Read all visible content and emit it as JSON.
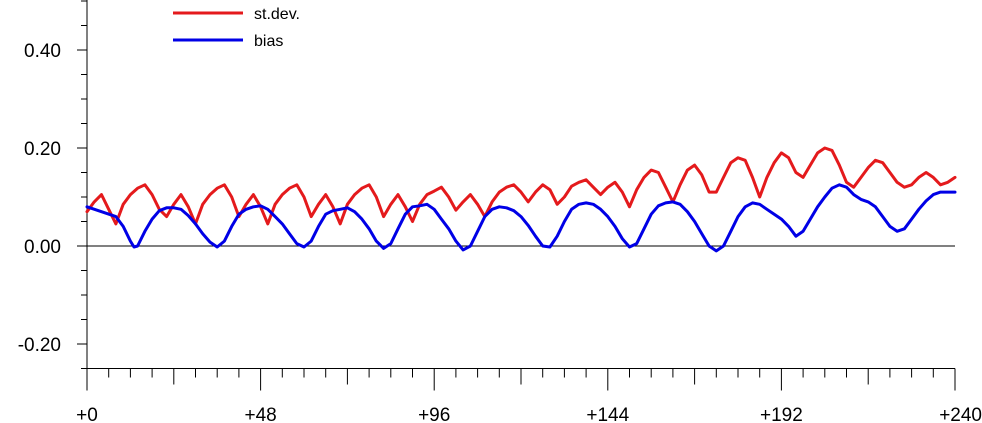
{
  "chart_data": {
    "type": "line",
    "title": "",
    "xlabel": "",
    "ylabel": "",
    "xlim": [
      0,
      240
    ],
    "ylim": [
      -0.25,
      0.5
    ],
    "x_ticks": [
      {
        "value": 0,
        "label": "+0"
      },
      {
        "value": 48,
        "label": "+48"
      },
      {
        "value": 96,
        "label": "+96"
      },
      {
        "value": 144,
        "label": "+144"
      },
      {
        "value": 192,
        "label": "+192"
      },
      {
        "value": 240,
        "label": "+240"
      }
    ],
    "y_ticks": [
      {
        "value": 0.4,
        "label": "0.40"
      },
      {
        "value": 0.2,
        "label": "0.20"
      },
      {
        "value": 0.0,
        "label": "0.00"
      },
      {
        "value": -0.2,
        "label": "-0.20"
      }
    ],
    "zero_line": true,
    "grid": false,
    "legend_position": "top-left",
    "series": [
      {
        "name": "st.dev.",
        "color": "#e41a1c",
        "points": [
          [
            0,
            0.07
          ],
          [
            2,
            0.09
          ],
          [
            4,
            0.105
          ],
          [
            6,
            0.075
          ],
          [
            8,
            0.045
          ],
          [
            10,
            0.085
          ],
          [
            12,
            0.105
          ],
          [
            14,
            0.118
          ],
          [
            16,
            0.125
          ],
          [
            18,
            0.105
          ],
          [
            20,
            0.075
          ],
          [
            22,
            0.06
          ],
          [
            24,
            0.085
          ],
          [
            26,
            0.105
          ],
          [
            28,
            0.08
          ],
          [
            30,
            0.045
          ],
          [
            32,
            0.085
          ],
          [
            34,
            0.105
          ],
          [
            36,
            0.118
          ],
          [
            38,
            0.125
          ],
          [
            40,
            0.1
          ],
          [
            42,
            0.06
          ],
          [
            44,
            0.085
          ],
          [
            46,
            0.105
          ],
          [
            48,
            0.08
          ],
          [
            50,
            0.045
          ],
          [
            52,
            0.085
          ],
          [
            54,
            0.105
          ],
          [
            56,
            0.118
          ],
          [
            58,
            0.125
          ],
          [
            60,
            0.1
          ],
          [
            62,
            0.06
          ],
          [
            64,
            0.085
          ],
          [
            66,
            0.105
          ],
          [
            68,
            0.08
          ],
          [
            70,
            0.045
          ],
          [
            72,
            0.085
          ],
          [
            74,
            0.105
          ],
          [
            76,
            0.118
          ],
          [
            78,
            0.125
          ],
          [
            80,
            0.1
          ],
          [
            82,
            0.06
          ],
          [
            84,
            0.085
          ],
          [
            86,
            0.105
          ],
          [
            88,
            0.08
          ],
          [
            90,
            0.05
          ],
          [
            92,
            0.085
          ],
          [
            94,
            0.105
          ],
          [
            96,
            0.112
          ],
          [
            98,
            0.12
          ],
          [
            100,
            0.1
          ],
          [
            102,
            0.073
          ],
          [
            104,
            0.09
          ],
          [
            106,
            0.105
          ],
          [
            108,
            0.085
          ],
          [
            110,
            0.06
          ],
          [
            112,
            0.09
          ],
          [
            114,
            0.11
          ],
          [
            116,
            0.12
          ],
          [
            118,
            0.125
          ],
          [
            120,
            0.11
          ],
          [
            122,
            0.09
          ],
          [
            124,
            0.11
          ],
          [
            126,
            0.125
          ],
          [
            128,
            0.115
          ],
          [
            130,
            0.085
          ],
          [
            132,
            0.1
          ],
          [
            134,
            0.122
          ],
          [
            136,
            0.13
          ],
          [
            138,
            0.135
          ],
          [
            140,
            0.12
          ],
          [
            142,
            0.105
          ],
          [
            144,
            0.12
          ],
          [
            146,
            0.13
          ],
          [
            148,
            0.11
          ],
          [
            150,
            0.08
          ],
          [
            152,
            0.115
          ],
          [
            154,
            0.14
          ],
          [
            156,
            0.155
          ],
          [
            158,
            0.15
          ],
          [
            160,
            0.12
          ],
          [
            162,
            0.09
          ],
          [
            164,
            0.125
          ],
          [
            166,
            0.155
          ],
          [
            168,
            0.165
          ],
          [
            170,
            0.145
          ],
          [
            172,
            0.11
          ],
          [
            174,
            0.11
          ],
          [
            176,
            0.14
          ],
          [
            178,
            0.17
          ],
          [
            180,
            0.18
          ],
          [
            182,
            0.175
          ],
          [
            184,
            0.14
          ],
          [
            186,
            0.1
          ],
          [
            188,
            0.14
          ],
          [
            190,
            0.17
          ],
          [
            192,
            0.19
          ],
          [
            194,
            0.18
          ],
          [
            196,
            0.15
          ],
          [
            198,
            0.14
          ],
          [
            200,
            0.165
          ],
          [
            202,
            0.19
          ],
          [
            204,
            0.2
          ],
          [
            206,
            0.195
          ],
          [
            208,
            0.165
          ],
          [
            210,
            0.13
          ],
          [
            212,
            0.12
          ],
          [
            214,
            0.14
          ],
          [
            216,
            0.16
          ],
          [
            218,
            0.175
          ],
          [
            220,
            0.17
          ],
          [
            222,
            0.15
          ],
          [
            224,
            0.13
          ],
          [
            226,
            0.12
          ],
          [
            228,
            0.125
          ],
          [
            230,
            0.14
          ],
          [
            232,
            0.15
          ],
          [
            234,
            0.14
          ],
          [
            236,
            0.125
          ],
          [
            238,
            0.13
          ],
          [
            240,
            0.14
          ]
        ]
      },
      {
        "name": "bias",
        "color": "#0000e6",
        "points": [
          [
            0,
            0.08
          ],
          [
            4,
            0.07
          ],
          [
            8,
            0.06
          ],
          [
            10,
            0.04
          ],
          [
            12,
            0.01
          ],
          [
            13,
            -0.002
          ],
          [
            14,
            0.0
          ],
          [
            16,
            0.03
          ],
          [
            18,
            0.055
          ],
          [
            20,
            0.072
          ],
          [
            22,
            0.078
          ],
          [
            24,
            0.078
          ],
          [
            26,
            0.075
          ],
          [
            28,
            0.062
          ],
          [
            30,
            0.045
          ],
          [
            32,
            0.025
          ],
          [
            34,
            0.008
          ],
          [
            36,
            -0.002
          ],
          [
            38,
            0.01
          ],
          [
            40,
            0.04
          ],
          [
            42,
            0.065
          ],
          [
            44,
            0.075
          ],
          [
            46,
            0.08
          ],
          [
            48,
            0.082
          ],
          [
            50,
            0.075
          ],
          [
            52,
            0.06
          ],
          [
            54,
            0.045
          ],
          [
            56,
            0.025
          ],
          [
            58,
            0.005
          ],
          [
            60,
            -0.002
          ],
          [
            62,
            0.01
          ],
          [
            64,
            0.04
          ],
          [
            66,
            0.065
          ],
          [
            68,
            0.072
          ],
          [
            70,
            0.075
          ],
          [
            72,
            0.078
          ],
          [
            74,
            0.07
          ],
          [
            76,
            0.055
          ],
          [
            78,
            0.035
          ],
          [
            80,
            0.01
          ],
          [
            82,
            -0.005
          ],
          [
            84,
            0.005
          ],
          [
            86,
            0.035
          ],
          [
            88,
            0.065
          ],
          [
            90,
            0.08
          ],
          [
            92,
            0.082
          ],
          [
            94,
            0.085
          ],
          [
            96,
            0.075
          ],
          [
            98,
            0.055
          ],
          [
            100,
            0.035
          ],
          [
            102,
            0.01
          ],
          [
            104,
            -0.008
          ],
          [
            106,
            0.0
          ],
          [
            108,
            0.03
          ],
          [
            110,
            0.06
          ],
          [
            112,
            0.075
          ],
          [
            114,
            0.08
          ],
          [
            116,
            0.078
          ],
          [
            118,
            0.072
          ],
          [
            120,
            0.06
          ],
          [
            122,
            0.042
          ],
          [
            124,
            0.02
          ],
          [
            126,
            0.0
          ],
          [
            128,
            -0.002
          ],
          [
            130,
            0.02
          ],
          [
            132,
            0.05
          ],
          [
            134,
            0.075
          ],
          [
            136,
            0.085
          ],
          [
            138,
            0.088
          ],
          [
            140,
            0.085
          ],
          [
            142,
            0.075
          ],
          [
            144,
            0.06
          ],
          [
            146,
            0.04
          ],
          [
            148,
            0.015
          ],
          [
            150,
            -0.002
          ],
          [
            152,
            0.005
          ],
          [
            154,
            0.035
          ],
          [
            156,
            0.065
          ],
          [
            158,
            0.082
          ],
          [
            160,
            0.088
          ],
          [
            162,
            0.09
          ],
          [
            164,
            0.085
          ],
          [
            166,
            0.07
          ],
          [
            168,
            0.05
          ],
          [
            170,
            0.025
          ],
          [
            172,
            0.0
          ],
          [
            174,
            -0.01
          ],
          [
            176,
            0.0
          ],
          [
            178,
            0.03
          ],
          [
            180,
            0.06
          ],
          [
            182,
            0.08
          ],
          [
            184,
            0.088
          ],
          [
            186,
            0.085
          ],
          [
            188,
            0.075
          ],
          [
            190,
            0.065
          ],
          [
            192,
            0.055
          ],
          [
            194,
            0.04
          ],
          [
            196,
            0.02
          ],
          [
            198,
            0.03
          ],
          [
            200,
            0.055
          ],
          [
            202,
            0.08
          ],
          [
            204,
            0.1
          ],
          [
            206,
            0.118
          ],
          [
            208,
            0.125
          ],
          [
            210,
            0.12
          ],
          [
            212,
            0.105
          ],
          [
            214,
            0.095
          ],
          [
            216,
            0.09
          ],
          [
            218,
            0.08
          ],
          [
            220,
            0.06
          ],
          [
            222,
            0.04
          ],
          [
            224,
            0.03
          ],
          [
            226,
            0.035
          ],
          [
            228,
            0.055
          ],
          [
            230,
            0.075
          ],
          [
            232,
            0.092
          ],
          [
            234,
            0.105
          ],
          [
            236,
            0.11
          ],
          [
            238,
            0.11
          ],
          [
            240,
            0.11
          ]
        ]
      }
    ]
  }
}
